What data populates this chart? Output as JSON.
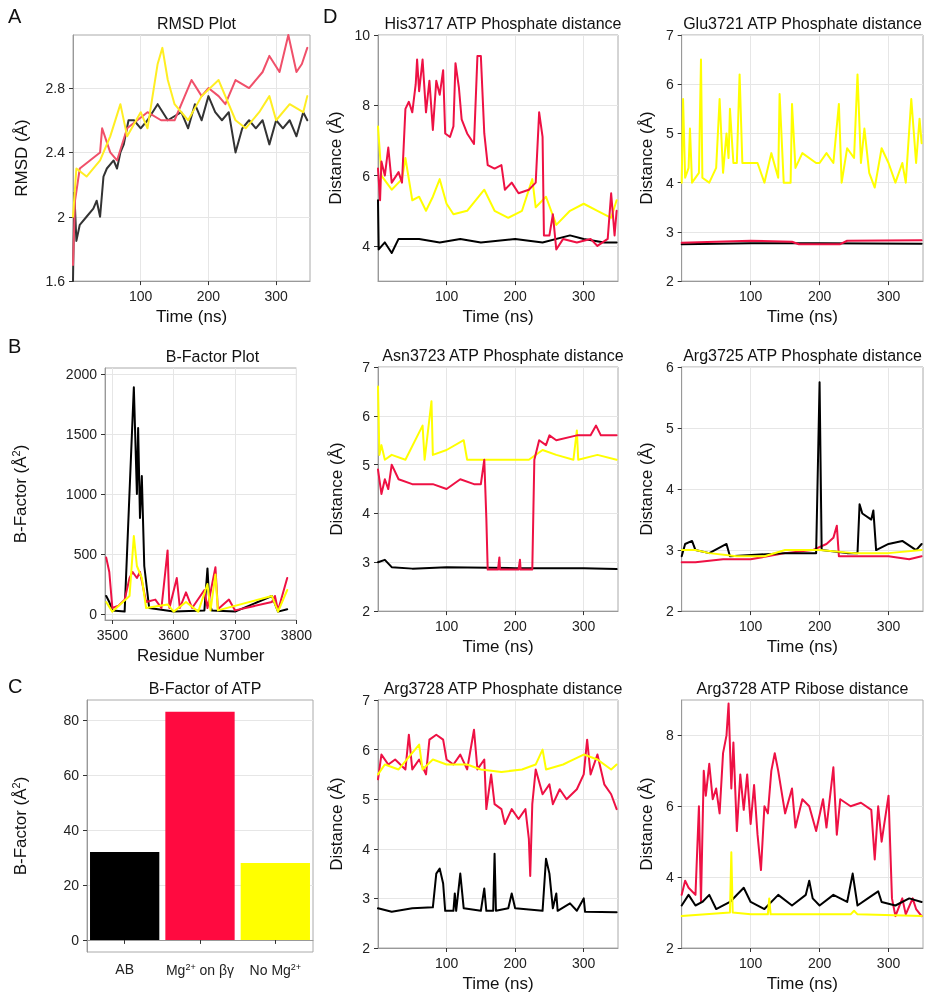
{
  "chart_data": [
    {
      "type": "line",
      "title": "RMSD Plot",
      "xlabel": "Time (ns)",
      "ylabel": "RMSD (Å)",
      "annotations": [
        "A"
      ],
      "xlim": [
        0,
        350
      ],
      "xticks": [
        100,
        200,
        300
      ],
      "ylim": [
        1.6,
        3.13
      ],
      "yticks": [
        1.6,
        2.0,
        2.4,
        2.8
      ],
      "grid": true,
      "series": [
        {
          "color": "#333333",
          "x": [
            0,
            2,
            5,
            10,
            20,
            30,
            35,
            40,
            45,
            50,
            60,
            65,
            70,
            75,
            82,
            90,
            100,
            110,
            125,
            140,
            160,
            170,
            180,
            190,
            200,
            210,
            220,
            230,
            240,
            250,
            260,
            270,
            280,
            290,
            300,
            310,
            320,
            330,
            340,
            346
          ],
          "values": [
            1.6,
            2.15,
            1.85,
            1.95,
            2.0,
            2.05,
            2.1,
            2.0,
            2.25,
            2.3,
            2.35,
            2.3,
            2.4,
            2.45,
            2.6,
            2.6,
            2.55,
            2.6,
            2.7,
            2.6,
            2.65,
            2.55,
            2.7,
            2.6,
            2.75,
            2.65,
            2.6,
            2.65,
            2.4,
            2.55,
            2.6,
            2.55,
            2.6,
            2.45,
            2.6,
            2.55,
            2.6,
            2.5,
            2.65,
            2.6
          ]
        },
        {
          "color": "#f0506a",
          "x": [
            0,
            3,
            10,
            25,
            40,
            43,
            55,
            65,
            80,
            95,
            110,
            130,
            150,
            165,
            175,
            190,
            200,
            215,
            225,
            240,
            260,
            280,
            290,
            305,
            318,
            330,
            338,
            346
          ],
          "values": [
            1.7,
            2.1,
            2.3,
            2.35,
            2.4,
            2.55,
            2.4,
            2.35,
            2.55,
            2.6,
            2.65,
            2.6,
            2.6,
            2.75,
            2.85,
            2.75,
            2.8,
            2.75,
            2.7,
            2.85,
            2.8,
            2.9,
            3.0,
            2.9,
            3.13,
            2.9,
            2.95,
            3.05
          ]
        },
        {
          "color": "#ffee22",
          "x": [
            0,
            5,
            20,
            40,
            55,
            70,
            80,
            100,
            110,
            125,
            132,
            140,
            150,
            170,
            190,
            215,
            240,
            255,
            275,
            290,
            300,
            320,
            340,
            346
          ],
          "values": [
            2.0,
            2.3,
            2.25,
            2.35,
            2.5,
            2.7,
            2.5,
            2.65,
            2.55,
            2.95,
            3.05,
            2.85,
            2.7,
            2.6,
            2.75,
            2.85,
            2.6,
            2.55,
            2.65,
            2.75,
            2.6,
            2.7,
            2.65,
            2.75
          ]
        }
      ]
    },
    {
      "type": "line",
      "title": "His3717 ATP Phosphate distance",
      "xlabel": "Time (ns)",
      "ylabel": "Distance (Å)",
      "annotations": [
        "D"
      ],
      "xlim": [
        0,
        350
      ],
      "xticks": [
        100,
        200,
        300
      ],
      "ylim": [
        3,
        10
      ],
      "yticks": [
        4,
        6,
        8,
        10
      ],
      "grid": true,
      "series": [
        {
          "color": "#000000",
          "x": [
            0,
            1,
            10,
            20,
            30,
            60,
            90,
            120,
            150,
            200,
            240,
            280,
            300,
            330,
            348
          ],
          "values": [
            5.3,
            3.9,
            4.1,
            3.8,
            4.2,
            4.2,
            4.1,
            4.2,
            4.1,
            4.2,
            4.1,
            4.3,
            4.2,
            4.1,
            4.1
          ]
        },
        {
          "color": "#ffff00",
          "x": [
            0,
            5,
            20,
            35,
            40,
            50,
            60,
            70,
            80,
            90,
            100,
            110,
            130,
            155,
            170,
            190,
            210,
            225,
            230,
            245,
            260,
            280,
            300,
            320,
            340,
            348
          ],
          "values": [
            7.4,
            6.0,
            5.6,
            5.9,
            6.5,
            5.3,
            5.4,
            5.0,
            5.4,
            5.9,
            5.2,
            4.9,
            5.0,
            5.6,
            5.0,
            4.8,
            5.0,
            5.9,
            5.1,
            5.4,
            4.6,
            5.0,
            5.2,
            5.0,
            4.8,
            5.3
          ]
        },
        {
          "color": "#ee1144",
          "x": [
            0,
            3,
            5,
            10,
            15,
            20,
            30,
            35,
            40,
            45,
            50,
            55,
            57,
            60,
            65,
            70,
            75,
            80,
            85,
            90,
            95,
            98,
            105,
            110,
            113,
            118,
            122,
            130,
            140,
            145,
            150,
            155,
            160,
            170,
            180,
            185,
            195,
            205,
            220,
            230,
            235,
            240,
            242,
            250,
            255,
            260,
            270,
            290,
            310,
            320,
            335,
            340,
            345,
            348
          ],
          "values": [
            6.2,
            5.3,
            6.4,
            6.0,
            6.8,
            5.8,
            6.1,
            5.8,
            7.9,
            8.1,
            7.8,
            8.6,
            9.3,
            8.4,
            9.3,
            7.8,
            8.7,
            7.3,
            8.7,
            8.3,
            9.0,
            7.2,
            7.1,
            7.4,
            9.2,
            8.5,
            7.6,
            7.2,
            6.9,
            9.4,
            9.4,
            7.2,
            6.3,
            6.2,
            6.3,
            5.6,
            5.8,
            5.5,
            5.6,
            5.8,
            7.8,
            7.1,
            4.3,
            4.3,
            4.9,
            3.9,
            4.2,
            4.1,
            4.2,
            4.0,
            4.2,
            5.5,
            4.3,
            5.0
          ]
        }
      ]
    },
    {
      "type": "line",
      "title": "Glu3721 ATP Phosphate distance",
      "xlabel": "Time (ns)",
      "ylabel": "Distance (Å)",
      "xlim": [
        0,
        350
      ],
      "xticks": [
        100,
        200,
        300
      ],
      "ylim": [
        2,
        7
      ],
      "yticks": [
        2,
        3,
        4,
        5,
        6,
        7
      ],
      "grid": true,
      "series": [
        {
          "color": "#000000",
          "x": [
            0,
            100,
            200,
            348
          ],
          "values": [
            2.75,
            2.77,
            2.77,
            2.76
          ]
        },
        {
          "color": "#ee1144",
          "x": [
            0,
            100,
            160,
            170,
            230,
            240,
            348
          ],
          "values": [
            2.78,
            2.82,
            2.8,
            2.75,
            2.75,
            2.82,
            2.83
          ]
        },
        {
          "color": "#ffff00",
          "x": [
            0,
            2,
            5,
            10,
            12,
            15,
            25,
            28,
            30,
            40,
            50,
            55,
            60,
            65,
            68,
            70,
            75,
            80,
            84,
            88,
            110,
            120,
            130,
            140,
            142,
            148,
            158,
            160,
            165,
            175,
            195,
            200,
            210,
            220,
            228,
            232,
            240,
            250,
            255,
            260,
            265,
            272,
            280,
            290,
            300,
            310,
            320,
            325,
            333,
            340,
            345,
            348
          ],
          "values": [
            4.0,
            5.7,
            4.1,
            4.3,
            5.1,
            4.0,
            4.2,
            6.5,
            4.1,
            4.0,
            4.3,
            5.7,
            4.2,
            5.0,
            4.5,
            5.5,
            4.4,
            4.4,
            6.2,
            4.4,
            4.4,
            4.0,
            4.6,
            4.1,
            5.8,
            4.0,
            4.0,
            5.6,
            4.3,
            4.6,
            4.4,
            4.4,
            4.6,
            4.4,
            5.6,
            4.0,
            4.7,
            4.5,
            6.2,
            4.4,
            5.1,
            4.2,
            3.9,
            4.7,
            4.4,
            4.0,
            4.4,
            4.0,
            5.7,
            4.4,
            5.3,
            4.8
          ]
        }
      ]
    },
    {
      "type": "line",
      "title": "B-Factor Plot",
      "xlabel": "Residue Number",
      "ylabel": "B-Factor (Å$^{2}$)",
      "annotations": [
        "B"
      ],
      "xlim": [
        3488,
        3800
      ],
      "xticks": [
        3500,
        3600,
        3700,
        3800
      ],
      "ylim": [
        -50,
        2050
      ],
      "yticks": [
        0,
        500,
        1000,
        1500,
        2000
      ],
      "grid": true,
      "series": [
        {
          "color": "#000000",
          "x": [
            3490,
            3495,
            3500,
            3520,
            3535,
            3540,
            3542,
            3545,
            3548,
            3552,
            3560,
            3600,
            3650,
            3655,
            3658,
            3662,
            3700,
            3760,
            3770,
            3785
          ],
          "values": [
            150,
            100,
            30,
            20,
            1890,
            1000,
            1550,
            800,
            1150,
            400,
            50,
            20,
            30,
            380,
            100,
            30,
            20,
            150,
            20,
            40
          ]
        },
        {
          "color": "#ee1144",
          "x": [
            3490,
            3495,
            3500,
            3510,
            3520,
            3528,
            3533,
            3540,
            3545,
            3555,
            3570,
            3580,
            3590,
            3593,
            3605,
            3610,
            3620,
            3630,
            3650,
            3655,
            3668,
            3672,
            3690,
            3700,
            3760,
            3765,
            3770,
            3785
          ],
          "values": [
            470,
            350,
            50,
            70,
            120,
            300,
            350,
            300,
            350,
            100,
            120,
            50,
            530,
            50,
            300,
            50,
            180,
            50,
            200,
            50,
            390,
            40,
            120,
            30,
            100,
            150,
            30,
            300
          ]
        },
        {
          "color": "#ffff00",
          "x": [
            3490,
            3500,
            3528,
            3535,
            3540,
            3548,
            3555,
            3590,
            3600,
            3620,
            3640,
            3655,
            3660,
            3668,
            3672,
            3760,
            3770,
            3785
          ],
          "values": [
            100,
            20,
            150,
            650,
            400,
            300,
            50,
            80,
            20,
            100,
            20,
            250,
            30,
            330,
            30,
            150,
            20,
            200
          ]
        }
      ]
    },
    {
      "type": "line",
      "title": "Asn3723 ATP Phosphate distance",
      "xlabel": "Time (ns)",
      "ylabel": "Distance (Å)",
      "xlim": [
        0,
        350
      ],
      "xticks": [
        100,
        200,
        300
      ],
      "ylim": [
        2,
        7
      ],
      "yticks": [
        2,
        3,
        4,
        5,
        6,
        7
      ],
      "grid": true,
      "series": [
        {
          "color": "#000000",
          "x": [
            0,
            10,
            20,
            50,
            100,
            200,
            300,
            348
          ],
          "values": [
            3.0,
            3.05,
            2.9,
            2.87,
            2.9,
            2.88,
            2.88,
            2.86
          ]
        },
        {
          "color": "#ffff00",
          "x": [
            0,
            2,
            5,
            10,
            20,
            40,
            65,
            68,
            78,
            80,
            100,
            125,
            130,
            160,
            200,
            220,
            240,
            260,
            285,
            290,
            292,
            320,
            348
          ],
          "values": [
            6.6,
            5.2,
            5.4,
            5.1,
            5.2,
            5.1,
            5.8,
            5.1,
            6.3,
            5.2,
            5.3,
            5.5,
            5.1,
            5.1,
            5.1,
            5.1,
            5.3,
            5.2,
            5.1,
            5.7,
            5.1,
            5.2,
            5.1
          ]
        },
        {
          "color": "#ee1144",
          "x": [
            0,
            5,
            10,
            15,
            20,
            30,
            50,
            80,
            100,
            120,
            140,
            150,
            155,
            158,
            160,
            175,
            177,
            178,
            205,
            207,
            208,
            225,
            228,
            235,
            245,
            250,
            260,
            290,
            310,
            318,
            325,
            348
          ],
          "values": [
            4.9,
            4.4,
            4.7,
            4.5,
            5.0,
            4.7,
            4.6,
            4.6,
            4.5,
            4.7,
            4.6,
            4.6,
            5.1,
            3.9,
            2.85,
            2.85,
            3.1,
            2.85,
            2.85,
            3.05,
            2.85,
            2.85,
            5.1,
            5.5,
            5.4,
            5.6,
            5.5,
            5.6,
            5.6,
            5.8,
            5.6,
            5.6
          ]
        }
      ]
    },
    {
      "type": "line",
      "title": "Arg3725 ATP Phosphate distance",
      "xlabel": "Time (ns)",
      "ylabel": "Distance (Å)",
      "xlim": [
        0,
        350
      ],
      "xticks": [
        100,
        200,
        300
      ],
      "ylim": [
        2,
        6
      ],
      "yticks": [
        2,
        3,
        4,
        5,
        6
      ],
      "grid": true,
      "series": [
        {
          "color": "#ee1144",
          "x": [
            0,
            20,
            60,
            100,
            150,
            190,
            210,
            220,
            225,
            228,
            260,
            300,
            330,
            348
          ],
          "values": [
            2.8,
            2.8,
            2.85,
            2.85,
            2.95,
            3.0,
            3.1,
            3.2,
            3.4,
            2.9,
            2.9,
            2.9,
            2.85,
            2.9
          ]
        },
        {
          "color": "#000000",
          "x": [
            0,
            5,
            15,
            20,
            40,
            65,
            70,
            150,
            195,
            200,
            203,
            240,
            255,
            258,
            262,
            275,
            278,
            282,
            300,
            320,
            340,
            348
          ],
          "values": [
            2.9,
            3.1,
            3.15,
            3.0,
            2.95,
            3.1,
            2.9,
            2.95,
            2.95,
            5.75,
            3.0,
            2.95,
            2.95,
            3.75,
            3.6,
            3.5,
            3.65,
            3.0,
            3.1,
            3.15,
            3.0,
            3.1
          ]
        },
        {
          "color": "#ffff00",
          "x": [
            0,
            20,
            40,
            80,
            120,
            150,
            200,
            250,
            300,
            348
          ],
          "values": [
            3.0,
            3.0,
            2.95,
            2.9,
            2.9,
            3.0,
            3.0,
            2.95,
            2.95,
            3.0
          ]
        }
      ]
    },
    {
      "type": "bar",
      "title": "B-Factor of ATP",
      "ylabel": "B-Factor (Å$^{2}$)",
      "annotations": [
        "C"
      ],
      "categories": [
        "AB",
        "Mg$^{2+}$ on βγ",
        "No Mg$^{2+}$"
      ],
      "values": [
        32,
        83,
        28
      ],
      "colors": [
        "#000000",
        "#ff0a40",
        "#ffff00"
      ],
      "ylim": [
        -4.4,
        87.3
      ],
      "yticks": [
        0,
        20,
        40,
        60,
        80
      ],
      "grid": true
    },
    {
      "type": "line",
      "title": "Arg3728 ATP Phosphate distance",
      "xlabel": "Time (ns)",
      "ylabel": "Distance (Å)",
      "xlim": [
        0,
        350
      ],
      "xticks": [
        100,
        200,
        300
      ],
      "ylim": [
        2,
        7
      ],
      "yticks": [
        2,
        3,
        4,
        5,
        6,
        7
      ],
      "grid": true,
      "series": [
        {
          "color": "#000000",
          "x": [
            0,
            20,
            50,
            80,
            85,
            90,
            95,
            98,
            110,
            112,
            114,
            120,
            125,
            150,
            155,
            158,
            168,
            170,
            172,
            190,
            195,
            200,
            240,
            245,
            250,
            255,
            260,
            262,
            280,
            290,
            300,
            302,
            348
          ],
          "values": [
            2.8,
            2.73,
            2.8,
            2.82,
            3.5,
            3.6,
            3.3,
            2.75,
            2.75,
            3.1,
            2.75,
            3.5,
            2.8,
            2.75,
            3.2,
            2.75,
            2.75,
            3.9,
            2.75,
            2.8,
            3.1,
            2.8,
            2.75,
            3.8,
            3.5,
            2.8,
            3.1,
            2.75,
            2.9,
            2.75,
            3.0,
            2.73,
            2.72
          ]
        },
        {
          "color": "#ee1144",
          "x": [
            0,
            5,
            15,
            25,
            40,
            45,
            50,
            60,
            70,
            75,
            85,
            95,
            100,
            110,
            120,
            130,
            140,
            145,
            155,
            158,
            165,
            170,
            180,
            185,
            195,
            205,
            215,
            220,
            222,
            225,
            230,
            240,
            250,
            255,
            265,
            275,
            290,
            300,
            305,
            310,
            320,
            330,
            340,
            348
          ],
          "values": [
            5.4,
            5.9,
            5.7,
            5.8,
            5.6,
            6.3,
            5.6,
            5.8,
            5.5,
            6.2,
            6.3,
            6.2,
            5.8,
            5.7,
            5.9,
            5.6,
            6.4,
            5.6,
            5.8,
            4.8,
            5.5,
            4.9,
            4.8,
            4.5,
            4.8,
            4.6,
            4.8,
            4.2,
            3.45,
            4.9,
            5.6,
            5.1,
            5.3,
            4.9,
            5.2,
            5.0,
            5.2,
            5.5,
            6.2,
            5.5,
            5.9,
            5.3,
            5.1,
            4.8
          ]
        },
        {
          "color": "#ffff00",
          "x": [
            0,
            10,
            30,
            60,
            65,
            80,
            100,
            130,
            150,
            180,
            210,
            230,
            240,
            245,
            270,
            300,
            320,
            340,
            348
          ],
          "values": [
            5.5,
            5.7,
            5.6,
            6.1,
            5.6,
            5.8,
            5.7,
            5.7,
            5.6,
            5.55,
            5.6,
            5.7,
            6.0,
            5.6,
            5.7,
            5.9,
            5.8,
            5.6,
            5.7
          ]
        }
      ]
    },
    {
      "type": "line",
      "title": "Arg3728 ATP Ribose distance",
      "xlabel": "Time (ns)",
      "ylabel": "Distance (Å)",
      "xlim": [
        0,
        350
      ],
      "xticks": [
        100,
        200,
        300
      ],
      "ylim": [
        2,
        9
      ],
      "yticks": [
        2,
        4,
        6,
        8
      ],
      "grid": true,
      "series": [
        {
          "color": "#ee1144",
          "x": [
            0,
            5,
            10,
            20,
            25,
            28,
            32,
            35,
            40,
            45,
            50,
            55,
            60,
            65,
            68,
            72,
            75,
            80,
            85,
            90,
            95,
            100,
            105,
            110,
            115,
            120,
            125,
            130,
            135,
            140,
            150,
            160,
            165,
            175,
            185,
            195,
            205,
            210,
            220,
            225,
            230,
            245,
            260,
            275,
            280,
            285,
            290,
            300,
            305,
            310,
            320,
            325,
            335,
            340,
            348
          ],
          "values": [
            3.5,
            3.9,
            3.7,
            3.5,
            6.0,
            3.3,
            7.0,
            6.3,
            7.2,
            6.2,
            6.5,
            5.8,
            7.5,
            8.0,
            8.9,
            6.5,
            7.8,
            5.3,
            6.9,
            5.9,
            6.9,
            5.5,
            6.6,
            5.2,
            4.2,
            6.0,
            5.8,
            7.0,
            7.5,
            7.0,
            5.8,
            6.5,
            5.4,
            6.2,
            6.0,
            5.3,
            6.2,
            5.4,
            7.1,
            5.2,
            6.2,
            6.0,
            6.1,
            5.9,
            4.5,
            6.0,
            5.0,
            6.3,
            3.4,
            2.9,
            3.4,
            2.95,
            3.4,
            3.1,
            2.9
          ]
        },
        {
          "color": "#000000",
          "x": [
            0,
            10,
            20,
            30,
            40,
            50,
            70,
            90,
            100,
            120,
            140,
            160,
            180,
            185,
            190,
            200,
            220,
            240,
            248,
            255,
            270,
            285,
            290,
            310,
            330,
            348
          ],
          "values": [
            3.2,
            3.5,
            3.2,
            3.3,
            3.5,
            3.1,
            3.3,
            3.7,
            3.3,
            3.1,
            3.5,
            3.2,
            3.5,
            3.9,
            3.4,
            3.2,
            3.5,
            3.3,
            4.1,
            3.2,
            3.4,
            3.6,
            3.3,
            3.2,
            3.4,
            3.3
          ]
        },
        {
          "color": "#ffff00",
          "x": [
            0,
            70,
            72,
            74,
            100,
            125,
            127,
            129,
            200,
            245,
            250,
            255,
            348
          ],
          "values": [
            2.9,
            3.0,
            4.7,
            3.0,
            2.95,
            2.95,
            3.4,
            2.95,
            2.95,
            2.95,
            3.05,
            2.95,
            2.9
          ]
        }
      ]
    }
  ]
}
